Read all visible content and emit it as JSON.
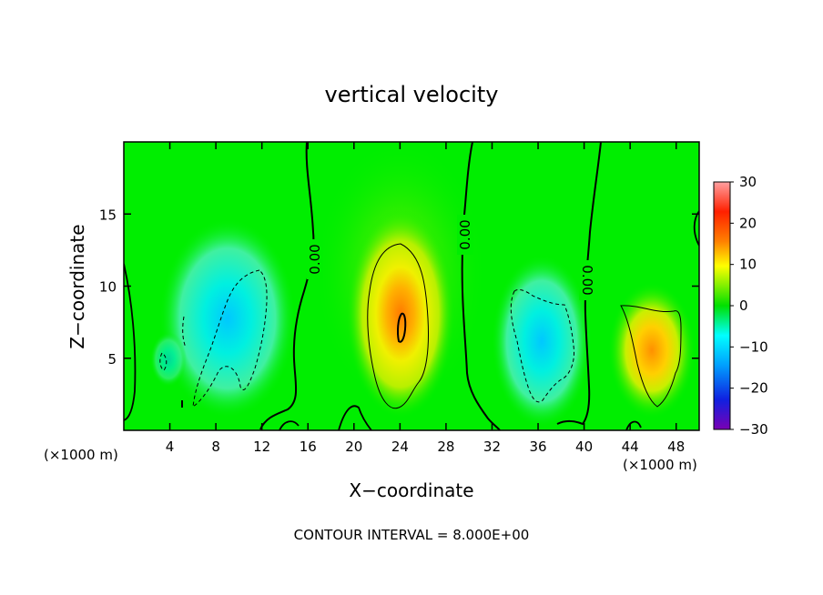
{
  "chart_data": {
    "type": "heatmap",
    "title": "vertical velocity",
    "xlabel": "X−coordinate",
    "ylabel": "Z−coordinate",
    "x_units": "(×1000 m)",
    "x_units_right": "(×1000 m)",
    "xlim": [
      0,
      50
    ],
    "ylim": [
      0,
      20
    ],
    "x_ticks": [
      4,
      8,
      12,
      16,
      20,
      24,
      28,
      32,
      36,
      40,
      44,
      48
    ],
    "x_tick_labels": [
      "4",
      "8",
      "12",
      "16",
      "20",
      "24",
      "28",
      "32",
      "36",
      "40",
      "44",
      "48"
    ],
    "y_ticks": [
      5,
      10,
      15
    ],
    "y_tick_labels": [
      "5",
      "10",
      "15"
    ],
    "colorbar": {
      "range": [
        -30,
        30
      ],
      "ticks": [
        30,
        20,
        10,
        0,
        -10,
        -20,
        -30
      ],
      "tick_labels": [
        "30",
        "20",
        "10",
        "0",
        "−10",
        "−20",
        "−30"
      ],
      "colors": [
        "#7a00b4",
        "#1020e0",
        "#00a0ff",
        "#00ffff",
        "#00e000",
        "#ffff00",
        "#ff8000",
        "#ff2000",
        "#ffa0a0"
      ]
    },
    "contour_interval": 8,
    "contour_labels": [
      "0.00",
      "0.00",
      "0.00"
    ],
    "footer": "CONTOUR INTERVAL = 8.000E+00",
    "features": [
      {
        "kind": "updraft",
        "x": 24,
        "z": 7.5,
        "peak": 18
      },
      {
        "kind": "updraft",
        "x": 46,
        "z": 5,
        "peak": 12
      },
      {
        "kind": "downdraft",
        "x": 10,
        "z": 7.5,
        "peak": -9
      },
      {
        "kind": "downdraft",
        "x": 36,
        "z": 5.5,
        "peak": -10
      }
    ]
  }
}
